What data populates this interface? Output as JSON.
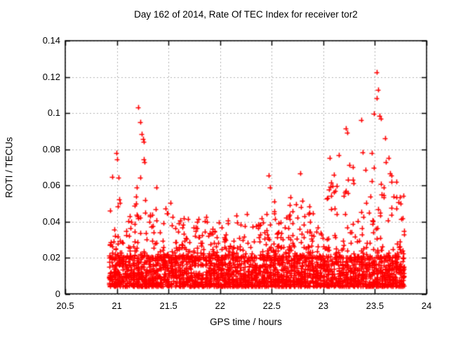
{
  "page": {
    "background_color": "#ffffff",
    "text_color": "#000000"
  },
  "chart_data": {
    "type": "scatter",
    "title": "Day 162 of 2014, Rate Of TEC Index for receiver tor2",
    "xlabel": "GPS time / hours",
    "ylabel": "ROTI / TECUs",
    "xlim": [
      20.5,
      24
    ],
    "ylim": [
      0,
      0.14
    ],
    "xticks": [
      {
        "v": 20.5,
        "label": "20.5"
      },
      {
        "v": 21,
        "label": "21"
      },
      {
        "v": 21.5,
        "label": "21.5"
      },
      {
        "v": 22,
        "label": "22"
      },
      {
        "v": 22.5,
        "label": "22.5"
      },
      {
        "v": 23,
        "label": "23"
      },
      {
        "v": 23.5,
        "label": "23.5"
      },
      {
        "v": 24,
        "label": "24"
      }
    ],
    "yticks": [
      {
        "v": 0,
        "label": "0"
      },
      {
        "v": 0.02,
        "label": "0.02"
      },
      {
        "v": 0.04,
        "label": "0.04"
      },
      {
        "v": 0.06,
        "label": "0.06"
      },
      {
        "v": 0.08,
        "label": "0.08"
      },
      {
        "v": 0.1,
        "label": "0.1"
      },
      {
        "v": 0.12,
        "label": "0.12"
      },
      {
        "v": 0.14,
        "label": "0.14"
      }
    ],
    "grid": true,
    "grid_color": "#b0b0b0",
    "border_color": "#000000",
    "legend": "none",
    "marker": {
      "glyph": "plus",
      "color": "#ff0000",
      "size": 7,
      "stroke_width": 1.6
    },
    "series": [
      {
        "name": "ROTI",
        "x_start": 20.925,
        "x_end": 23.787,
        "epoch_hours": 0.0083333,
        "sats_min": 7,
        "sats_max": 10,
        "seed": 162,
        "base_band": {
          "y_min": 0.004,
          "y_max": 0.02,
          "weight": 0.74,
          "shape": 1.6
        },
        "tail": {
          "y_start": 0.02,
          "shape": 3.2
        },
        "envelope_xy": [
          [
            20.925,
            0.06
          ],
          [
            20.96,
            0.068
          ],
          [
            21.0,
            0.078
          ],
          [
            21.04,
            0.07
          ],
          [
            21.08,
            0.048
          ],
          [
            21.13,
            0.055
          ],
          [
            21.18,
            0.085
          ],
          [
            21.22,
            0.103
          ],
          [
            21.26,
            0.09
          ],
          [
            21.3,
            0.058
          ],
          [
            21.38,
            0.062
          ],
          [
            21.45,
            0.055
          ],
          [
            21.5,
            0.058
          ],
          [
            21.56,
            0.038
          ],
          [
            21.65,
            0.046
          ],
          [
            21.72,
            0.04
          ],
          [
            21.8,
            0.046
          ],
          [
            21.88,
            0.042
          ],
          [
            21.95,
            0.038
          ],
          [
            22.02,
            0.044
          ],
          [
            22.1,
            0.042
          ],
          [
            22.18,
            0.045
          ],
          [
            22.25,
            0.046
          ],
          [
            22.32,
            0.042
          ],
          [
            22.4,
            0.048
          ],
          [
            22.47,
            0.065
          ],
          [
            22.55,
            0.045
          ],
          [
            22.62,
            0.05
          ],
          [
            22.7,
            0.055
          ],
          [
            22.78,
            0.067
          ],
          [
            22.85,
            0.055
          ],
          [
            22.92,
            0.05
          ],
          [
            23.0,
            0.058
          ],
          [
            23.08,
            0.065
          ],
          [
            23.15,
            0.078
          ],
          [
            23.22,
            0.092
          ],
          [
            23.28,
            0.07
          ],
          [
            23.35,
            0.085
          ],
          [
            23.42,
            0.075
          ],
          [
            23.48,
            0.095
          ],
          [
            23.52,
            0.123
          ],
          [
            23.56,
            0.105
          ],
          [
            23.62,
            0.078
          ],
          [
            23.68,
            0.065
          ],
          [
            23.74,
            0.06
          ],
          [
            23.787,
            0.055
          ]
        ],
        "outliers_xy": [
          [
            20.995,
            0.078
          ],
          [
            21.005,
            0.0745
          ],
          [
            21.21,
            0.103
          ],
          [
            21.225,
            0.095
          ],
          [
            21.24,
            0.0885
          ],
          [
            21.253,
            0.0855
          ],
          [
            21.258,
            0.084
          ],
          [
            22.47,
            0.0655
          ],
          [
            22.78,
            0.0665
          ],
          [
            23.06,
            0.075
          ],
          [
            23.22,
            0.0915
          ],
          [
            23.235,
            0.089
          ],
          [
            23.37,
            0.096
          ],
          [
            23.49,
            0.0995
          ],
          [
            23.515,
            0.1225
          ],
          [
            23.52,
            0.108
          ],
          [
            23.53,
            0.113
          ],
          [
            23.545,
            0.0985
          ],
          [
            23.56,
            0.097
          ]
        ]
      }
    ]
  }
}
